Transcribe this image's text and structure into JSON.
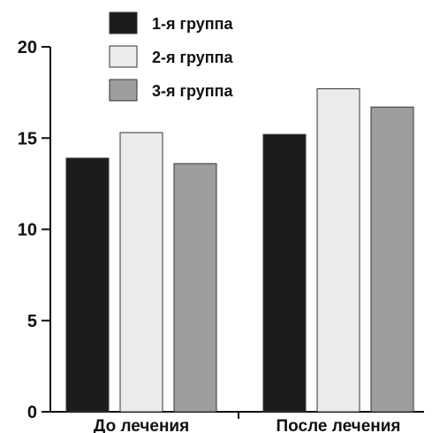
{
  "chart_data": {
    "type": "bar",
    "categories": [
      "До лечения",
      "После лечения"
    ],
    "series": [
      {
        "name": "1-я группа",
        "values": [
          13.9,
          15.2
        ],
        "color": "#1c1c1c"
      },
      {
        "name": "2-я группа",
        "values": [
          15.3,
          17.7
        ],
        "color": "#ebebeb"
      },
      {
        "name": "3-я группа",
        "values": [
          13.6,
          16.7
        ],
        "color": "#9e9e9e"
      }
    ],
    "ylim": [
      0,
      20
    ],
    "yticks": [
      0,
      5,
      10,
      15,
      20
    ],
    "title": "",
    "xlabel": "",
    "ylabel": "",
    "grid": false,
    "legend": "top-center"
  }
}
